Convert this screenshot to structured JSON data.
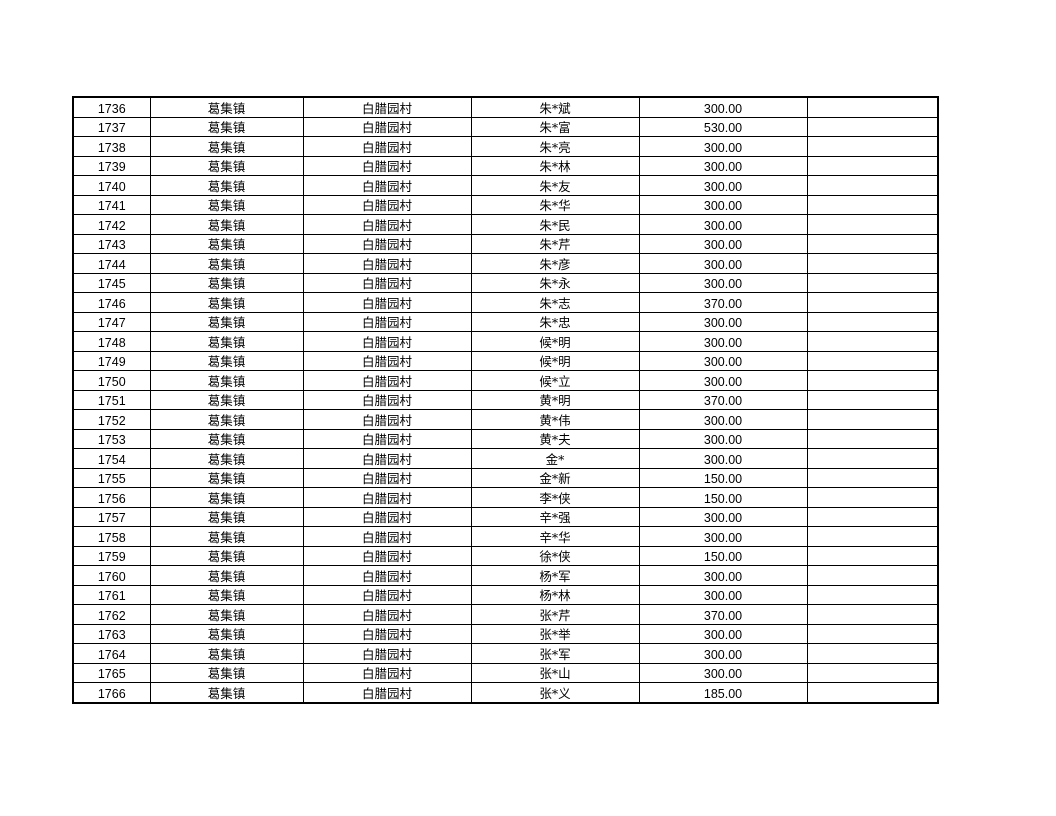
{
  "table": {
    "rows": [
      [
        "1736",
        "葛集镇",
        "白腊园村",
        "朱*斌",
        "300.00",
        ""
      ],
      [
        "1737",
        "葛集镇",
        "白腊园村",
        "朱*富",
        "530.00",
        ""
      ],
      [
        "1738",
        "葛集镇",
        "白腊园村",
        "朱*亮",
        "300.00",
        ""
      ],
      [
        "1739",
        "葛集镇",
        "白腊园村",
        "朱*林",
        "300.00",
        ""
      ],
      [
        "1740",
        "葛集镇",
        "白腊园村",
        "朱*友",
        "300.00",
        ""
      ],
      [
        "1741",
        "葛集镇",
        "白腊园村",
        "朱*华",
        "300.00",
        ""
      ],
      [
        "1742",
        "葛集镇",
        "白腊园村",
        "朱*民",
        "300.00",
        ""
      ],
      [
        "1743",
        "葛集镇",
        "白腊园村",
        "朱*芹",
        "300.00",
        ""
      ],
      [
        "1744",
        "葛集镇",
        "白腊园村",
        "朱*彦",
        "300.00",
        ""
      ],
      [
        "1745",
        "葛集镇",
        "白腊园村",
        "朱*永",
        "300.00",
        ""
      ],
      [
        "1746",
        "葛集镇",
        "白腊园村",
        "朱*志",
        "370.00",
        ""
      ],
      [
        "1747",
        "葛集镇",
        "白腊园村",
        "朱*忠",
        "300.00",
        ""
      ],
      [
        "1748",
        "葛集镇",
        "白腊园村",
        "候*明",
        "300.00",
        ""
      ],
      [
        "1749",
        "葛集镇",
        "白腊园村",
        "候*明",
        "300.00",
        ""
      ],
      [
        "1750",
        "葛集镇",
        "白腊园村",
        "候*立",
        "300.00",
        ""
      ],
      [
        "1751",
        "葛集镇",
        "白腊园村",
        "黄*明",
        "370.00",
        ""
      ],
      [
        "1752",
        "葛集镇",
        "白腊园村",
        "黄*伟",
        "300.00",
        ""
      ],
      [
        "1753",
        "葛集镇",
        "白腊园村",
        "黄*夫",
        "300.00",
        ""
      ],
      [
        "1754",
        "葛集镇",
        "白腊园村",
        "金*",
        "300.00",
        ""
      ],
      [
        "1755",
        "葛集镇",
        "白腊园村",
        "金*新",
        "150.00",
        ""
      ],
      [
        "1756",
        "葛集镇",
        "白腊园村",
        "李*侠",
        "150.00",
        ""
      ],
      [
        "1757",
        "葛集镇",
        "白腊园村",
        "辛*强",
        "300.00",
        ""
      ],
      [
        "1758",
        "葛集镇",
        "白腊园村",
        "辛*华",
        "300.00",
        ""
      ],
      [
        "1759",
        "葛集镇",
        "白腊园村",
        "徐*侠",
        "150.00",
        ""
      ],
      [
        "1760",
        "葛集镇",
        "白腊园村",
        "杨*军",
        "300.00",
        ""
      ],
      [
        "1761",
        "葛集镇",
        "白腊园村",
        "杨*林",
        "300.00",
        ""
      ],
      [
        "1762",
        "葛集镇",
        "白腊园村",
        "张*芹",
        "370.00",
        ""
      ],
      [
        "1763",
        "葛集镇",
        "白腊园村",
        "张*举",
        "300.00",
        ""
      ],
      [
        "1764",
        "葛集镇",
        "白腊园村",
        "张*军",
        "300.00",
        ""
      ],
      [
        "1765",
        "葛集镇",
        "白腊园村",
        "张*山",
        "300.00",
        ""
      ],
      [
        "1766",
        "葛集镇",
        "白腊园村",
        "张*义",
        "185.00",
        ""
      ]
    ]
  }
}
